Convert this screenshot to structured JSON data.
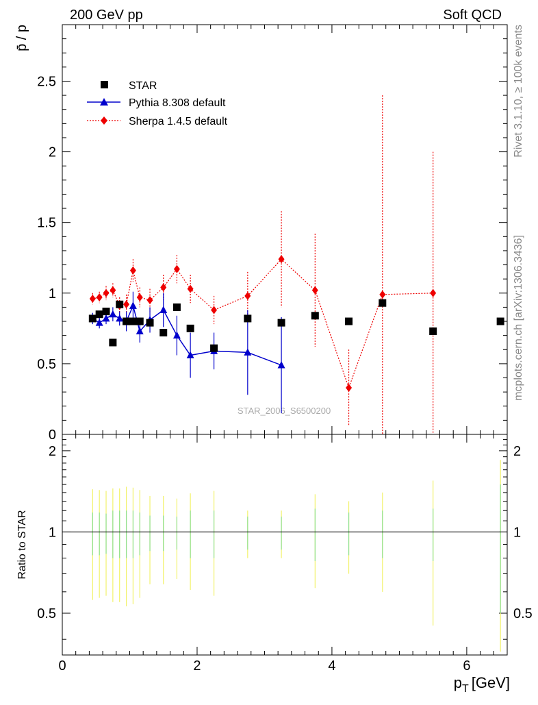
{
  "header": {
    "left": "200 GeV pp",
    "right": "Soft QCD"
  },
  "side_notes": {
    "rivet": "Rivet 3.1.10, ≥ 100k events",
    "mcplots": "mcplots.cern.ch [arXiv:1306.3436]"
  },
  "watermark": "STAR_2006_S6500200",
  "chart_data": {
    "type": "scatter",
    "title": "",
    "ylabel": "p̄ / p",
    "xlabel": "p_T [GeV]",
    "xlabel_main": "p",
    "xlabel_sub": "T",
    "xlabel_unit": "[GeV]",
    "ratio_ylabel": "Ratio to STAR",
    "xlim": [
      0,
      6.6
    ],
    "ylim": [
      0,
      2.9
    ],
    "ratio_ylim": [
      0.35,
      2.3
    ],
    "x_ticks": [
      "0",
      "2",
      "4",
      "6"
    ],
    "y_ticks": [
      "0.5",
      "1",
      "1.5",
      "2",
      "2.5"
    ],
    "ratio_ticks": [
      "0.5",
      "1",
      "2"
    ],
    "legend": [
      {
        "name": "STAR",
        "marker": "square",
        "color": "#000000",
        "line": "none"
      },
      {
        "name": "Pythia 8.308 default",
        "marker": "triangle",
        "color": "#0000cc",
        "line": "solid"
      },
      {
        "name": "Sherpa 1.4.5 default",
        "marker": "diamond",
        "color": "#ee0000",
        "line": "dotted"
      }
    ],
    "series": [
      {
        "name": "STAR",
        "x": [
          0.45,
          0.55,
          0.65,
          0.75,
          0.85,
          0.95,
          1.05,
          1.15,
          1.3,
          1.5,
          1.7,
          1.9,
          2.25,
          2.75,
          3.25,
          3.75,
          4.25,
          4.75,
          5.5,
          6.5
        ],
        "y": [
          0.82,
          0.85,
          0.87,
          0.65,
          0.92,
          0.8,
          0.8,
          0.8,
          0.79,
          0.72,
          0.9,
          0.75,
          0.61,
          0.82,
          0.79,
          0.84,
          0.8,
          0.93,
          0.73,
          0.8
        ]
      },
      {
        "name": "Pythia 8.308 default",
        "x": [
          0.45,
          0.55,
          0.65,
          0.75,
          0.85,
          0.95,
          1.05,
          1.15,
          1.3,
          1.5,
          1.7,
          1.9,
          2.25,
          2.75,
          3.25
        ],
        "y": [
          0.82,
          0.79,
          0.82,
          0.85,
          0.82,
          0.8,
          0.91,
          0.73,
          0.81,
          0.88,
          0.7,
          0.56,
          0.59,
          0.58,
          0.49
        ],
        "yerr": [
          0.04,
          0.04,
          0.04,
          0.05,
          0.05,
          0.07,
          0.1,
          0.08,
          0.09,
          0.12,
          0.14,
          0.16,
          0.13,
          0.3,
          0.34
        ]
      },
      {
        "name": "Sherpa 1.4.5 default",
        "x": [
          0.45,
          0.55,
          0.65,
          0.75,
          0.85,
          0.95,
          1.05,
          1.15,
          1.3,
          1.5,
          1.7,
          1.9,
          2.25,
          2.75,
          3.25,
          3.75,
          4.25,
          4.75,
          5.5
        ],
        "y": [
          0.96,
          0.97,
          1.0,
          1.02,
          0.91,
          0.92,
          1.16,
          0.97,
          0.95,
          1.04,
          1.17,
          1.03,
          0.88,
          0.98,
          1.24,
          1.02,
          0.33,
          0.99,
          1.0
        ],
        "yerr": [
          0.04,
          0.04,
          0.05,
          0.05,
          0.06,
          0.07,
          0.08,
          0.07,
          0.08,
          0.09,
          0.1,
          0.1,
          0.1,
          0.17,
          0.34,
          0.4,
          0.27,
          1.41,
          1.0
        ]
      }
    ],
    "ratio_bands": {
      "x": [
        0.45,
        0.55,
        0.65,
        0.75,
        0.85,
        0.95,
        1.05,
        1.15,
        1.3,
        1.5,
        1.7,
        1.9,
        2.25,
        2.75,
        3.25,
        3.75,
        4.25,
        4.75,
        5.5,
        6.5
      ],
      "stat": [
        0.18,
        0.18,
        0.17,
        0.2,
        0.2,
        0.2,
        0.2,
        0.18,
        0.15,
        0.15,
        0.14,
        0.2,
        0.2,
        0.14,
        0.14,
        0.22,
        0.18,
        0.2,
        0.22,
        0.5
      ],
      "syst": [
        0.44,
        0.43,
        0.42,
        0.45,
        0.45,
        0.47,
        0.46,
        0.43,
        0.36,
        0.36,
        0.33,
        0.39,
        0.42,
        0.2,
        0.2,
        0.38,
        0.3,
        0.4,
        0.55,
        0.85
      ]
    }
  }
}
